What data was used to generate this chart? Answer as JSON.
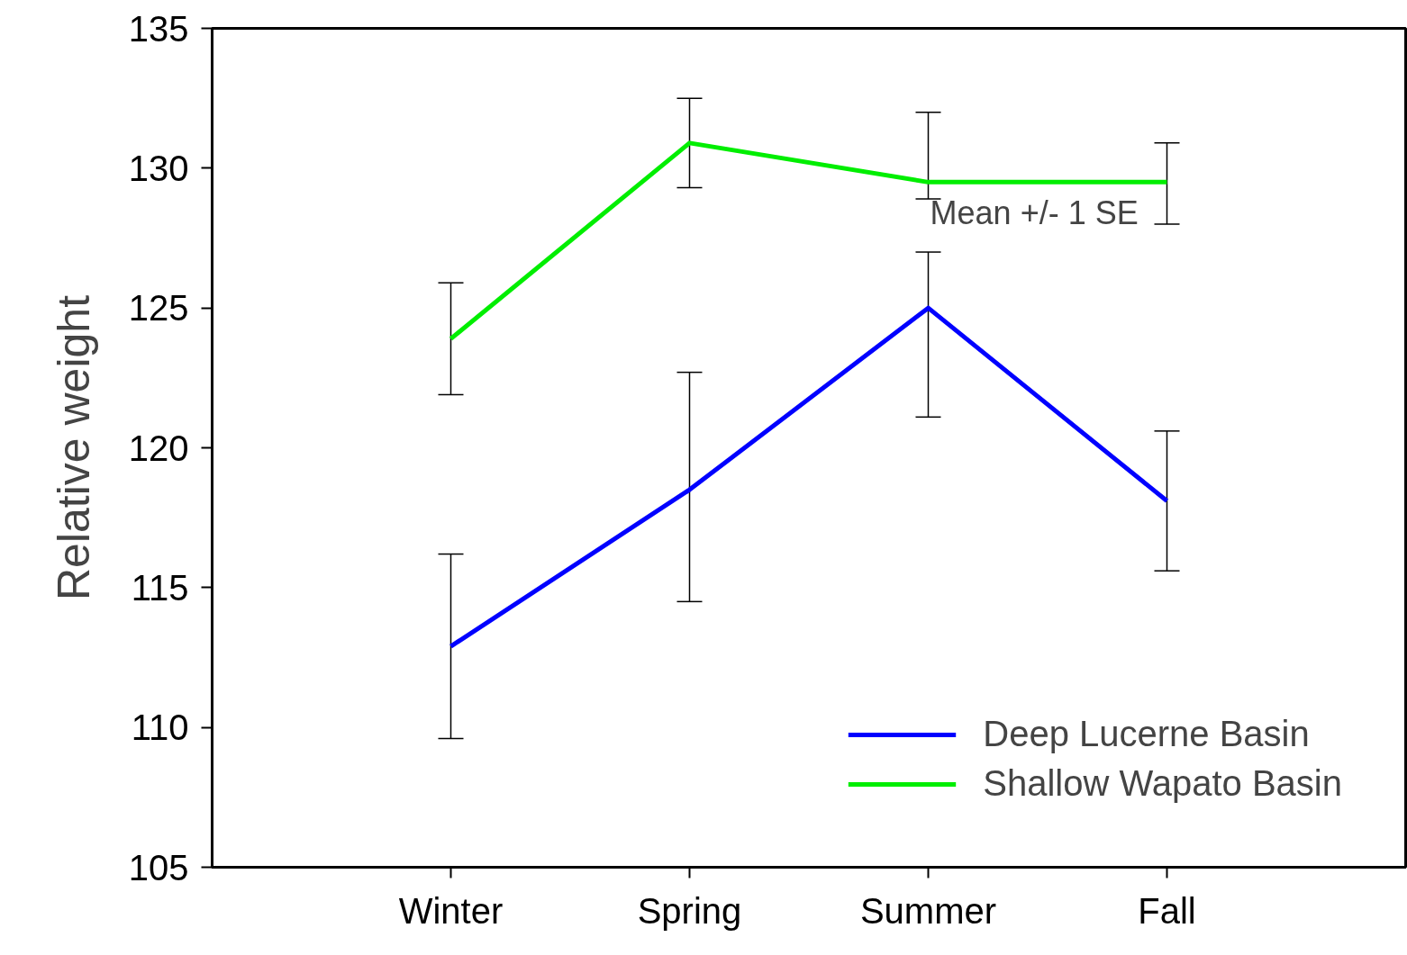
{
  "chart_data": {
    "type": "line",
    "ylabel": "Relative weight",
    "categories": [
      "Winter",
      "Spring",
      "Summer",
      "Fall"
    ],
    "series": [
      {
        "name": "Deep Lucerne Basin",
        "color": "#0000ff",
        "values": [
          112.9,
          118.5,
          125.0,
          118.1
        ],
        "errors": [
          [
            109.6,
            116.2
          ],
          [
            114.5,
            122.7
          ],
          [
            121.1,
            127.0
          ],
          [
            115.6,
            120.6
          ]
        ]
      },
      {
        "name": "Shallow Wapato Basin",
        "color": "#00ee00",
        "values": [
          123.9,
          130.9,
          129.5,
          129.5
        ],
        "errors": [
          [
            121.9,
            125.9
          ],
          [
            129.3,
            132.5
          ],
          [
            128.9,
            132.0
          ],
          [
            128.0,
            130.9
          ]
        ]
      }
    ],
    "ylim": [
      105,
      135
    ],
    "yticks": [
      105,
      110,
      115,
      120,
      125,
      130,
      135
    ],
    "annotations": [
      "Mean +/- 1 SE"
    ],
    "legend": "bottom right",
    "grid": false,
    "marker": "none",
    "line_style": "solid"
  }
}
